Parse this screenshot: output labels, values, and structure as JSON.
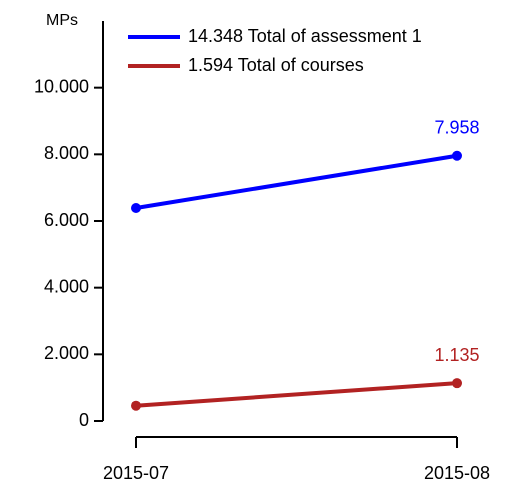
{
  "chart_data": {
    "type": "line",
    "y_axis_label": "MPs",
    "categories": [
      "2015-07",
      "2015-08"
    ],
    "series": [
      {
        "name": "14.348 Total of assessment 1",
        "color": "#0000ff",
        "values": [
          6390,
          7958
        ],
        "value_labels": [
          null,
          "7.958"
        ]
      },
      {
        "name": "1.594 Total of courses",
        "color": "#b22222",
        "values": [
          459,
          1135
        ],
        "value_labels": [
          null,
          "1.135"
        ]
      }
    ],
    "ylim": [
      0,
      12000
    ],
    "yticks": [
      0,
      {
        "value": 2000,
        "label": "2.000"
      },
      {
        "value": 4000,
        "label": "4.000"
      },
      {
        "value": 6000,
        "label": "6.000"
      },
      {
        "value": 8000,
        "label": "8.000"
      },
      {
        "value": 10000,
        "label": "10.000"
      }
    ],
    "legend": "top"
  }
}
